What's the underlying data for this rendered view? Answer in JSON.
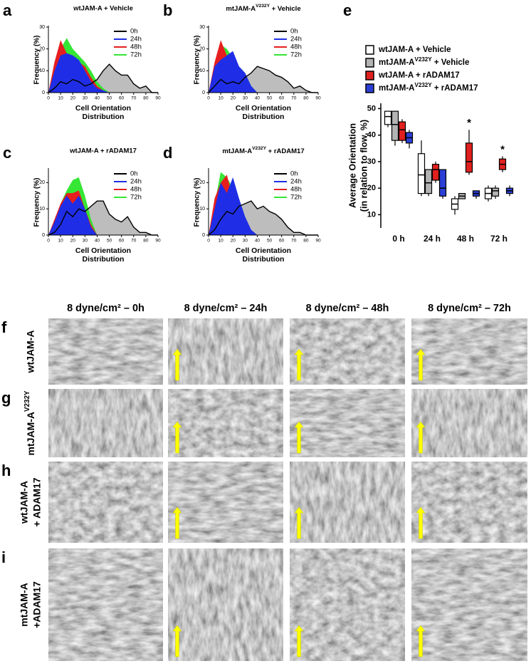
{
  "chart_data": [
    {
      "panel": "a",
      "type": "area",
      "title": "wtJAM-A + Vehicle",
      "xlabel": [
        "Cell Orientation",
        "Distribution"
      ],
      "ylabel": "Frequency (%)",
      "x": [
        0,
        5,
        10,
        15,
        20,
        25,
        30,
        35,
        40,
        45,
        50,
        55,
        60,
        65,
        70,
        75,
        80,
        85,
        90
      ],
      "xlim": [
        0,
        90
      ],
      "xticks": [
        0,
        10,
        20,
        30,
        40,
        50,
        60,
        70,
        80,
        90
      ],
      "ylim": [
        0,
        30
      ],
      "yticks": [
        0,
        10,
        20,
        30
      ],
      "legend": "upper right",
      "series": [
        {
          "name": "0h",
          "color": "#000000",
          "fill": "#bdbdbd",
          "values": [
            0,
            2,
            5,
            4,
            6,
            5,
            3,
            4,
            6,
            10,
            13,
            10,
            8,
            8,
            4,
            2,
            3,
            0,
            0
          ]
        },
        {
          "name": "24h",
          "color": "#1f2ee6",
          "values": [
            0,
            10,
            17,
            18,
            17,
            15,
            10,
            5,
            2,
            1,
            0,
            0,
            0,
            0,
            0,
            0,
            0,
            0,
            0
          ]
        },
        {
          "name": "48h",
          "color": "#e61e1e",
          "values": [
            0,
            14,
            24,
            18,
            17,
            14,
            12,
            7,
            3,
            1,
            0,
            0,
            0,
            0,
            0,
            0,
            0,
            0,
            0
          ]
        },
        {
          "name": "72h",
          "color": "#35e635",
          "values": [
            0,
            12,
            20,
            25,
            20,
            17,
            14,
            10,
            5,
            2,
            0,
            0,
            0,
            0,
            0,
            0,
            0,
            0,
            0
          ]
        }
      ]
    },
    {
      "panel": "b",
      "type": "area",
      "title": [
        "mtJAM-A",
        {
          "sup": "V232Y"
        },
        " + Vehicle"
      ],
      "xlabel": [
        "Cell Orientation",
        "Distribution"
      ],
      "ylabel": "Frequency (%)",
      "x": [
        0,
        5,
        10,
        15,
        20,
        25,
        30,
        35,
        40,
        45,
        50,
        55,
        60,
        65,
        70,
        75,
        80,
        85,
        90
      ],
      "xlim": [
        0,
        90
      ],
      "xticks": [
        0,
        10,
        20,
        30,
        40,
        50,
        60,
        70,
        80,
        90
      ],
      "ylim": [
        0,
        30
      ],
      "yticks": [
        0,
        10,
        20,
        30
      ],
      "legend": "upper right",
      "series": [
        {
          "name": "0h",
          "color": "#000000",
          "fill": "#bdbdbd",
          "values": [
            0,
            3,
            6,
            4,
            5,
            4,
            7,
            9,
            12,
            11,
            10,
            8,
            7,
            5,
            2,
            3,
            1,
            0,
            0
          ]
        },
        {
          "name": "24h",
          "color": "#1f2ee6",
          "values": [
            0,
            12,
            15,
            17,
            19,
            12,
            9,
            3,
            0,
            0,
            0,
            0,
            0,
            0,
            0,
            0,
            0,
            0,
            0
          ]
        },
        {
          "name": "48h",
          "color": "#e61e1e",
          "values": [
            0,
            14,
            24,
            17,
            16,
            12,
            8,
            2,
            0,
            0,
            0,
            0,
            0,
            0,
            0,
            0,
            0,
            0,
            0
          ]
        },
        {
          "name": "72h",
          "color": "#35e635",
          "values": [
            0,
            10,
            22,
            20,
            16,
            12,
            9,
            3,
            0,
            0,
            0,
            0,
            0,
            0,
            0,
            0,
            0,
            0,
            0
          ]
        }
      ]
    },
    {
      "panel": "c",
      "type": "area",
      "title": "wtJAM-A + rADAM17",
      "xlabel": [
        "Cell Orientation",
        "Distribution"
      ],
      "ylabel": "Frequency (%)",
      "x": [
        0,
        5,
        10,
        15,
        20,
        25,
        30,
        35,
        40,
        45,
        50,
        55,
        60,
        65,
        70,
        75,
        80,
        85,
        90
      ],
      "xlim": [
        0,
        90
      ],
      "xticks": [
        0,
        10,
        20,
        30,
        40,
        50,
        60,
        70,
        80,
        90
      ],
      "ylim": [
        0,
        25
      ],
      "yticks": [
        0,
        10,
        20
      ],
      "legend": "upper right",
      "series": [
        {
          "name": "0h",
          "color": "#000000",
          "fill": "#bdbdbd",
          "values": [
            0,
            1,
            4,
            9,
            7,
            10,
            9,
            11,
            13,
            13,
            8,
            6,
            5,
            7,
            3,
            1,
            1,
            0,
            0
          ]
        },
        {
          "name": "24h",
          "color": "#1f2ee6",
          "values": [
            0,
            5,
            11,
            15,
            12,
            15,
            10,
            3,
            0,
            0,
            0,
            0,
            0,
            0,
            0,
            0,
            0,
            0,
            0
          ]
        },
        {
          "name": "48h",
          "color": "#e61e1e",
          "values": [
            0,
            6,
            12,
            16,
            16,
            17,
            10,
            4,
            0,
            0,
            0,
            0,
            0,
            0,
            0,
            0,
            0,
            0,
            0
          ]
        },
        {
          "name": "72h",
          "color": "#35e635",
          "values": [
            0,
            5,
            12,
            17,
            21,
            22,
            15,
            6,
            0,
            0,
            0,
            0,
            0,
            0,
            0,
            0,
            0,
            0,
            0
          ]
        }
      ]
    },
    {
      "panel": "d",
      "type": "area",
      "title": [
        "mtJAM-A",
        {
          "sup": "V232Y"
        },
        " + rADAM17"
      ],
      "xlabel": [
        "Cell Orientation",
        "Distribution"
      ],
      "ylabel": "Frequency (%)",
      "x": [
        0,
        5,
        10,
        15,
        20,
        25,
        30,
        35,
        40,
        45,
        50,
        55,
        60,
        65,
        70,
        75,
        80,
        85,
        90
      ],
      "xlim": [
        0,
        90
      ],
      "xticks": [
        0,
        10,
        20,
        30,
        40,
        50,
        60,
        70,
        80,
        90
      ],
      "ylim": [
        0,
        25
      ],
      "yticks": [
        0,
        10,
        20
      ],
      "legend": "upper right",
      "series": [
        {
          "name": "0h",
          "color": "#000000",
          "fill": "#bdbdbd",
          "values": [
            0,
            2,
            6,
            9,
            8,
            11,
            12,
            13,
            10,
            11,
            9,
            8,
            6,
            3,
            1,
            1,
            0,
            0,
            0
          ]
        },
        {
          "name": "24h",
          "color": "#1f2ee6",
          "values": [
            0,
            10,
            20,
            16,
            22,
            14,
            7,
            2,
            0,
            0,
            0,
            0,
            0,
            0,
            0,
            0,
            0,
            0,
            0
          ]
        },
        {
          "name": "48h",
          "color": "#e61e1e",
          "values": [
            0,
            14,
            20,
            23,
            14,
            10,
            5,
            1,
            0,
            0,
            0,
            0,
            0,
            0,
            0,
            0,
            0,
            0,
            0
          ]
        },
        {
          "name": "72h",
          "color": "#35e635",
          "values": [
            0,
            12,
            24,
            22,
            18,
            12,
            6,
            1,
            0,
            0,
            0,
            0,
            0,
            0,
            0,
            0,
            0,
            0,
            0
          ]
        }
      ]
    },
    {
      "panel": "e",
      "type": "box",
      "ylabel": [
        "Average Orientation",
        "(in relation to flow, %)"
      ],
      "categories": [
        "0 h",
        "24 h",
        "48 h",
        "72 h"
      ],
      "ylim": [
        5,
        52
      ],
      "yticks": [
        10,
        20,
        30,
        40,
        50
      ],
      "legend": "top",
      "series": [
        {
          "name": "wtJAM-A + Vehicle",
          "color": "#ffffff",
          "median": [
            47,
            25,
            14,
            18
          ],
          "q1": [
            44,
            18,
            12,
            16
          ],
          "q3": [
            49,
            33,
            16,
            20
          ],
          "min": [
            43,
            17,
            10,
            15
          ],
          "max": [
            49,
            38,
            17,
            21
          ]
        },
        {
          "name": [
            "mtJAM-A",
            {
              "sup": "V232Y"
            },
            " + Vehicle"
          ],
          "color": "#b3b3b3",
          "median": [
            44,
            22,
            17,
            19
          ],
          "q1": [
            38,
            18,
            16,
            17
          ],
          "q3": [
            49,
            27,
            18,
            20
          ],
          "min": [
            36,
            17,
            16,
            16
          ],
          "max": [
            49,
            27,
            18,
            21
          ]
        },
        {
          "name": "wtJAM-A + rADAM17",
          "color": "#e0201e",
          "median": [
            42,
            27,
            30,
            29
          ],
          "q1": [
            38,
            23,
            26,
            27
          ],
          "q3": [
            45,
            29,
            37,
            31
          ],
          "min": [
            37,
            22,
            25,
            26
          ],
          "max": [
            46,
            30,
            42,
            32
          ]
        },
        {
          "name": [
            "mtJAM-A",
            {
              "sup": "V232Y"
            },
            " + rADAM17"
          ],
          "color": "#2b3fd6",
          "median": [
            39,
            20,
            18,
            19
          ],
          "q1": [
            37,
            17,
            17,
            18
          ],
          "q3": [
            41,
            27,
            19,
            20
          ],
          "min": [
            35,
            16,
            16,
            17
          ],
          "max": [
            42,
            27,
            19,
            21
          ]
        }
      ],
      "annotations": [
        {
          "text": "*",
          "category": 2,
          "series": 2
        },
        {
          "text": "*",
          "category": 3,
          "series": 2
        }
      ]
    }
  ],
  "micrographs": {
    "columns": [
      "8 dyne/cm² – 0h",
      "8 dyne/cm² – 24h",
      "8 dyne/cm² – 48h",
      "8 dyne/cm² – 72h"
    ],
    "rows": [
      {
        "panel": "f",
        "label": [
          "wtJAM-A"
        ]
      },
      {
        "panel": "g",
        "label": [
          [
            "mtJAM-A",
            {
              "sup": "V232Y"
            }
          ]
        ]
      },
      {
        "panel": "h",
        "label": [
          "wtJAM-A",
          "+ ADAM17"
        ]
      },
      {
        "panel": "i",
        "label": [
          "mtJAM-A",
          "+ADAM17"
        ]
      }
    ]
  }
}
